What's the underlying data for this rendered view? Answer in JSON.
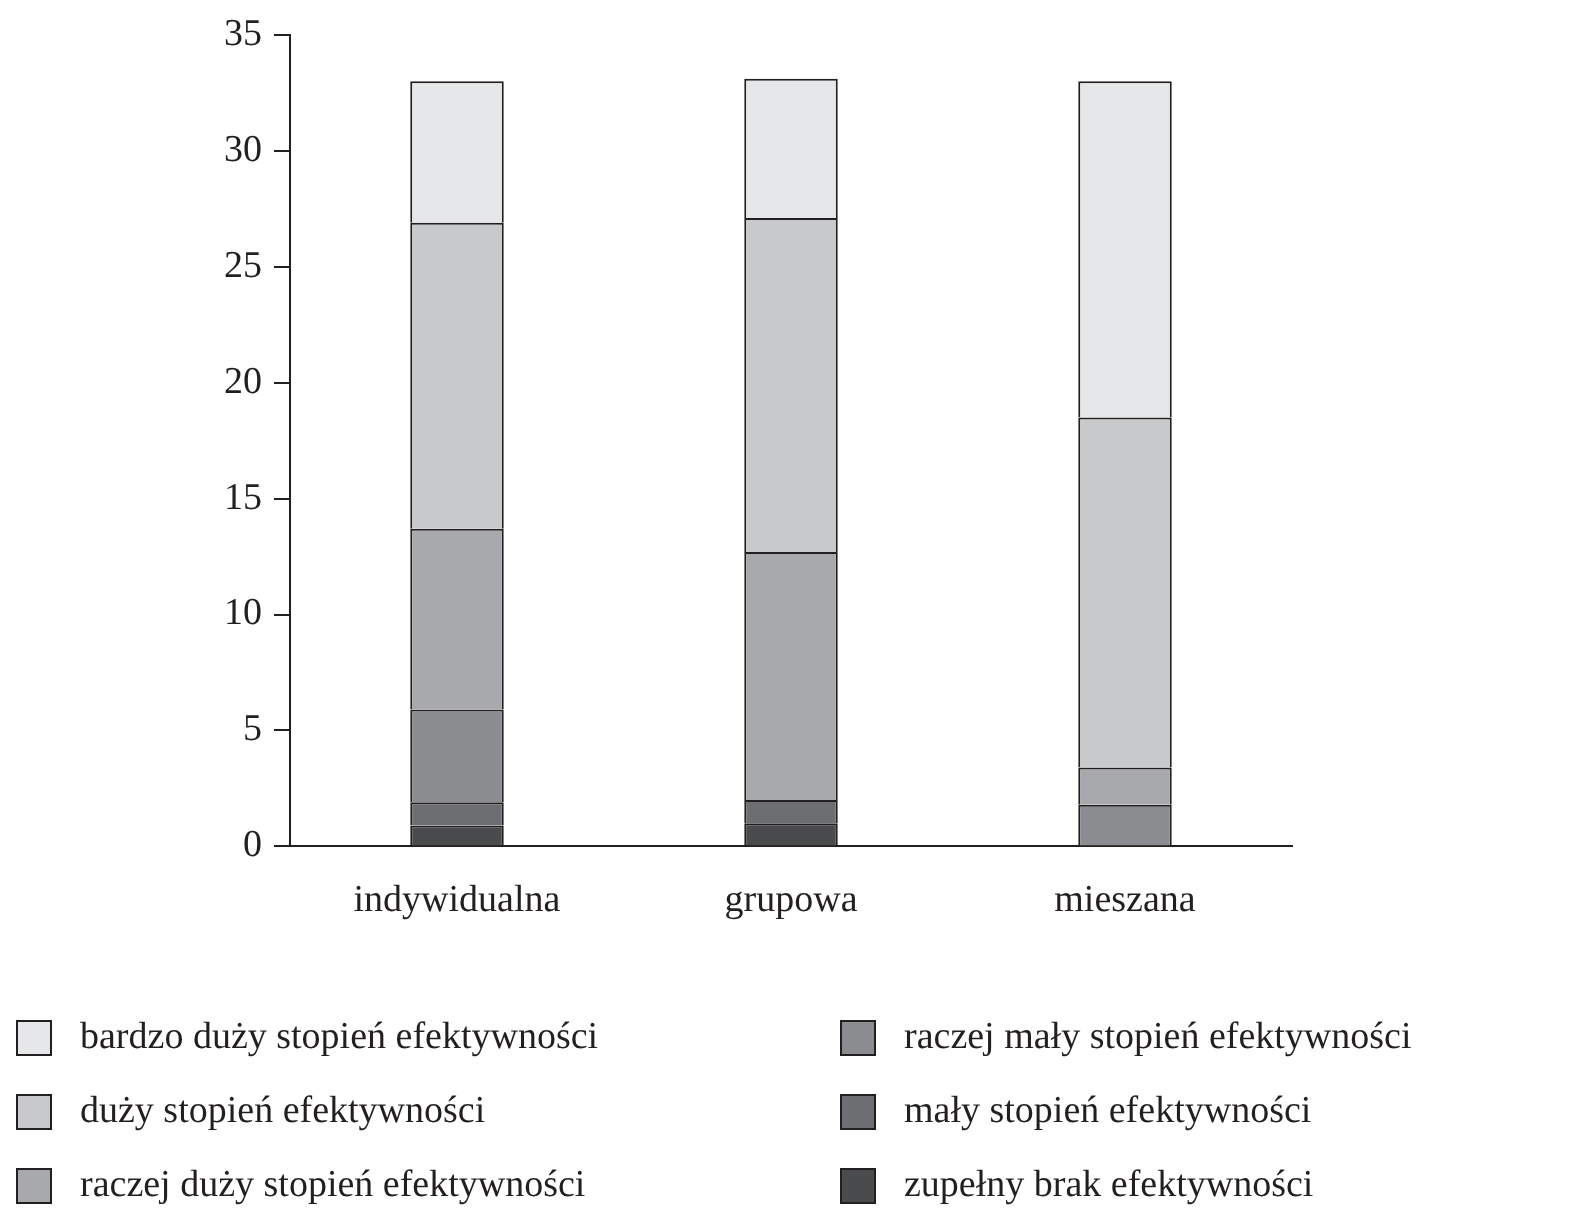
{
  "chart_data": {
    "type": "bar",
    "stacked": true,
    "categories": [
      "indywidualna",
      "grupowa",
      "mieszana"
    ],
    "series": [
      {
        "name": "zupełny brak efektywności",
        "color": "#4a4b4d",
        "values": [
          0.9,
          1,
          0
        ]
      },
      {
        "name": "mały stopień efektywności",
        "color": "#6d6e71",
        "values": [
          1,
          1,
          0
        ]
      },
      {
        "name": "raczej mały stopień efektywności",
        "color": "#8b8c8f",
        "values": [
          4,
          0,
          1.8
        ]
      },
      {
        "name": "raczej duży stopień efektywności",
        "color": "#a8a9ac",
        "values": [
          7.8,
          10.7,
          1.6
        ]
      },
      {
        "name": "duży stopień efektywności",
        "color": "#c8c9cb",
        "values": [
          13.2,
          14.4,
          15.1
        ]
      },
      {
        "name": "bardzo duży stopień efektywności",
        "color": "#e6e7e8",
        "values": [
          6.1,
          6,
          14.5
        ]
      }
    ],
    "ylim": [
      0,
      35
    ],
    "yticks": [
      0,
      5,
      10,
      15,
      20,
      25,
      30,
      35
    ],
    "grid": false,
    "legend": "bottom"
  }
}
